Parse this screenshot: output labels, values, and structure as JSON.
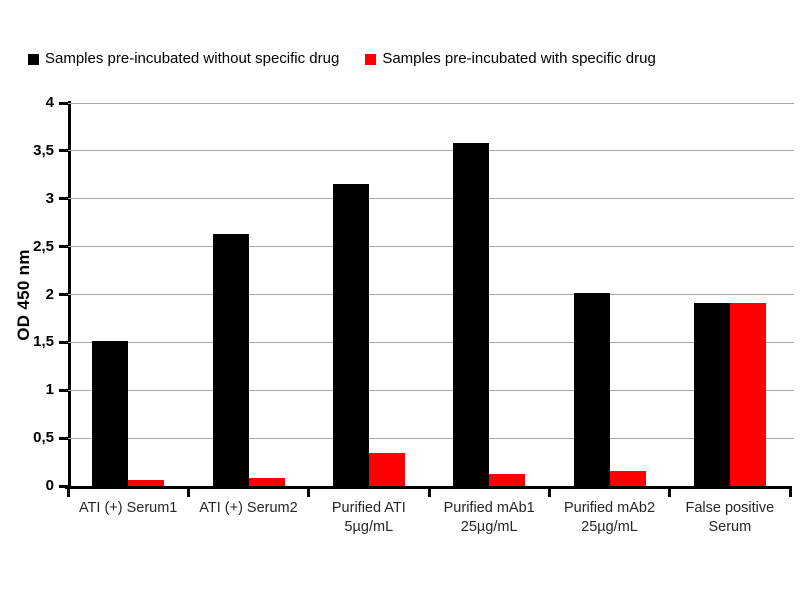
{
  "chart_data": {
    "type": "bar",
    "title": "",
    "xlabel": "",
    "ylabel": "OD 450 nm",
    "ylim": [
      0,
      4
    ],
    "ytick_step": 0.5,
    "ytick_labels": [
      "0",
      "0,5",
      "1",
      "1,5",
      "2",
      "2,5",
      "3",
      "3,5",
      "4"
    ],
    "grid": true,
    "legend_position": "top",
    "categories": [
      "ATI (+) Serum1",
      "ATI (+) Serum2",
      "Purified ATI\n5µg/mL",
      "Purified mAb1\n25µg/mL",
      "Purified mAb2\n25µg/mL",
      "False positive\nSerum"
    ],
    "series": [
      {
        "name": "Samples pre-incubated without specific drug",
        "color": "#000000",
        "values": [
          1.51,
          2.63,
          3.15,
          3.58,
          2.02,
          1.91
        ]
      },
      {
        "name": "Samples pre-incubated with specific drug",
        "color": "#fe0000",
        "values": [
          0.06,
          0.08,
          0.35,
          0.13,
          0.16,
          1.91
        ]
      }
    ],
    "colors": {
      "grid": "#a8a8a8",
      "axis": "#000000",
      "background": "#ffffff"
    }
  }
}
